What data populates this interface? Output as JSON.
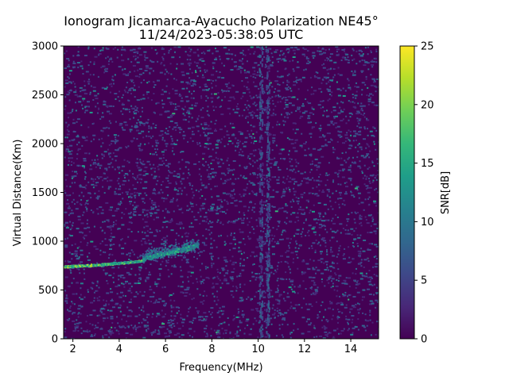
{
  "chart_data": {
    "type": "heatmap",
    "title": "Ionogram Jicamarca-Ayacucho Polarization NE45°",
    "subtitle": "11/24/2023-05:38:05 UTC",
    "xlabel": "Frequency(MHz)",
    "ylabel": "Virtual Distance(Km)",
    "xlim": [
      1.6,
      15.2
    ],
    "ylim": [
      0,
      3000
    ],
    "xticks": [
      2,
      4,
      6,
      8,
      10,
      12,
      14
    ],
    "yticks": [
      0,
      500,
      1000,
      1500,
      2000,
      2500,
      3000
    ],
    "colorbar": {
      "label": "SNR[dB]",
      "range": [
        0,
        25
      ],
      "ticks": [
        0,
        5,
        10,
        15,
        20,
        25
      ],
      "colormap": "viridis"
    },
    "grid": false,
    "features": [
      {
        "freq_range": [
          1.6,
          3.2
        ],
        "distance_start": 740,
        "distance_end": 760,
        "snr_peak": 24
      },
      {
        "freq_range": [
          3.2,
          5.0
        ],
        "distance_start": 760,
        "distance_end": 800,
        "snr_peak": 20
      },
      {
        "freq_range": [
          5.0,
          7.4
        ],
        "distance_start": 820,
        "distance_end": 960,
        "snr_peak": 16
      }
    ],
    "noise_features": [
      {
        "freq": 10.1,
        "distance_range": [
          0,
          3000
        ],
        "snr_peak": 8
      },
      {
        "freq": 10.4,
        "distance_range": [
          0,
          3000
        ],
        "snr_peak": 8
      }
    ]
  },
  "colors": {
    "background": "#440154",
    "viridis": [
      "#440154",
      "#482878",
      "#3e4989",
      "#31688e",
      "#26828e",
      "#1f9e89",
      "#35b779",
      "#6ece58",
      "#b5de2b",
      "#fde725"
    ]
  }
}
